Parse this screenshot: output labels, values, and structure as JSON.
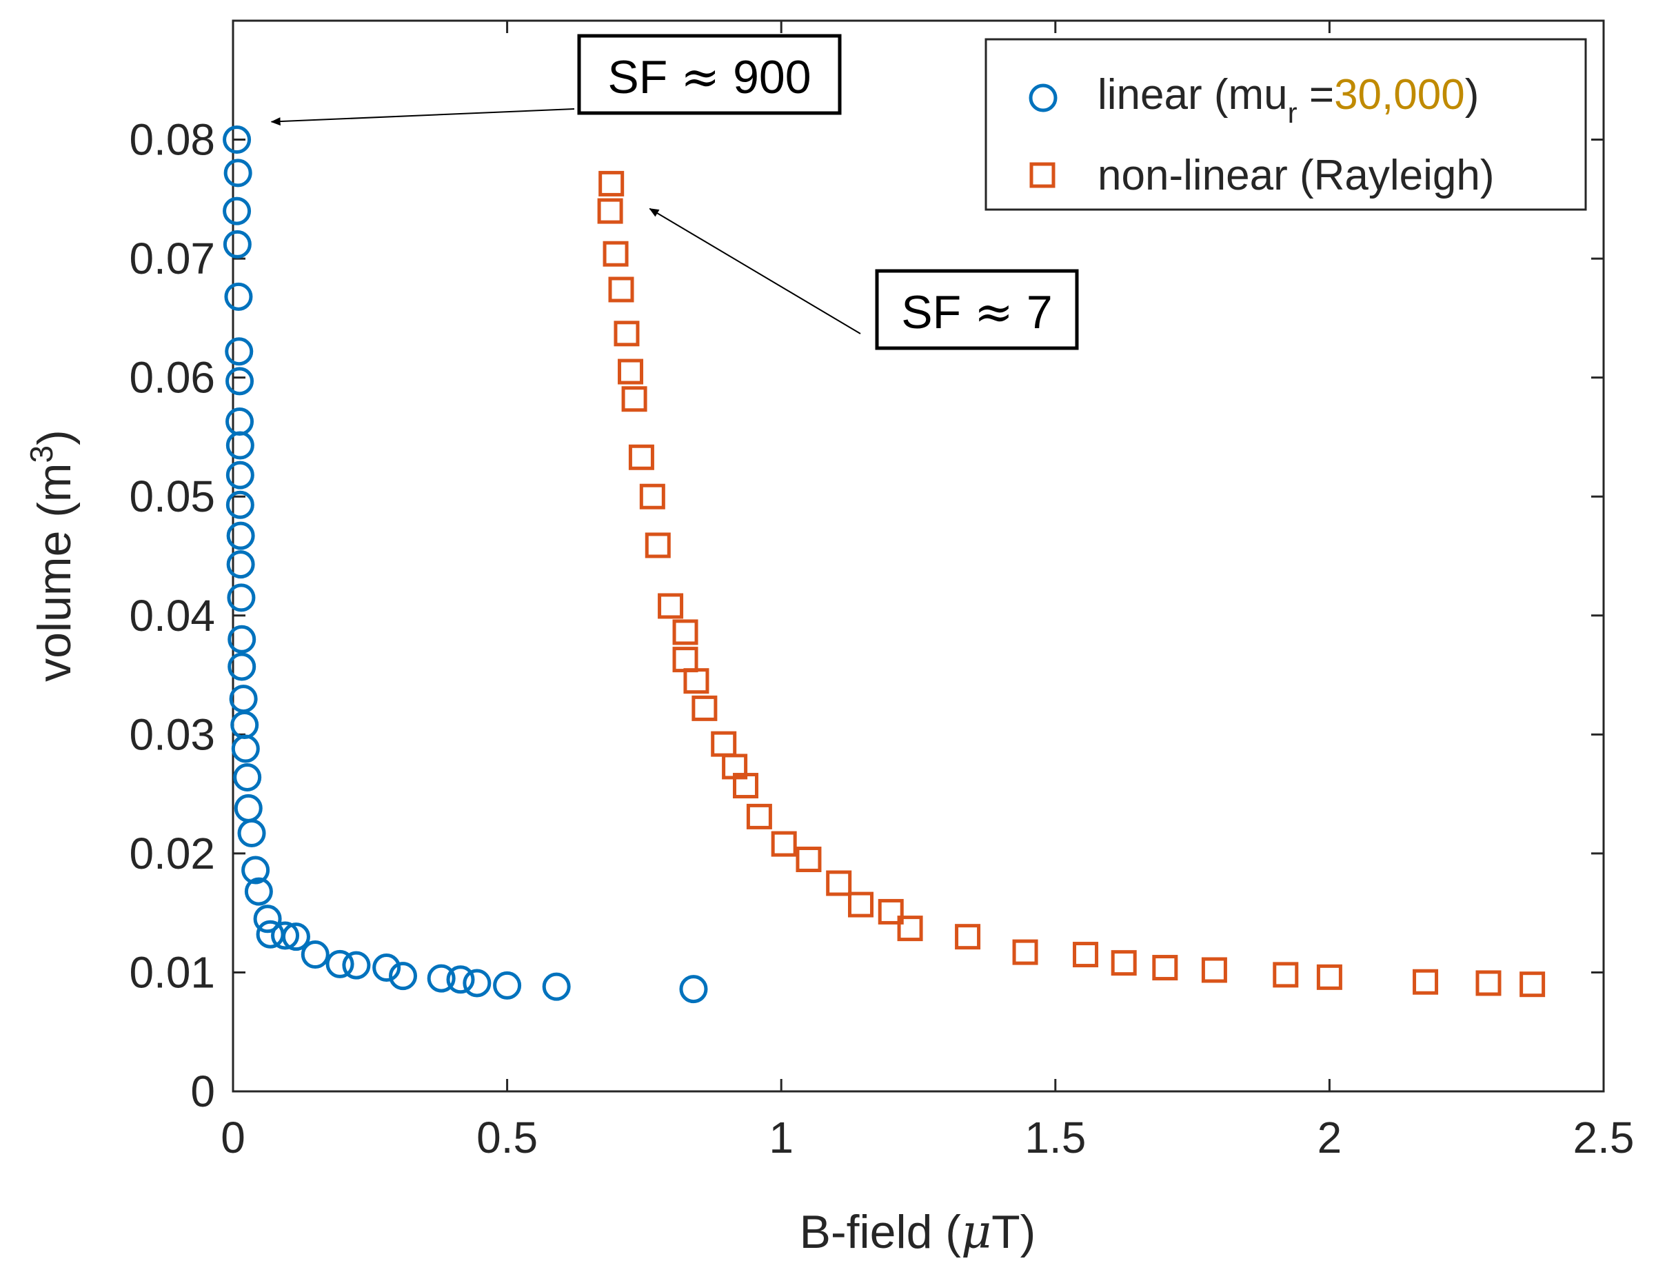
{
  "colors": {
    "linear": "#0072BD",
    "nonlinear": "#D95319",
    "axis": "#262626",
    "legend_accent": "#C08A00"
  },
  "chart_data": {
    "type": "scatter",
    "xlabel_prefix": "B-field (",
    "xlabel_mu": "μ",
    "xlabel_suffix": "T)",
    "ylabel_prefix": "volume (m",
    "ylabel_sup": "3",
    "ylabel_suffix": ")",
    "xlim": [
      0,
      2.5
    ],
    "ylim": [
      0,
      0.09
    ],
    "xticks": [
      0,
      0.5,
      1,
      1.5,
      2,
      2.5
    ],
    "xtick_labels": [
      "0",
      "0.5",
      "1",
      "1.5",
      "2",
      "2.5"
    ],
    "yticks": [
      0,
      0.01,
      0.02,
      0.03,
      0.04,
      0.05,
      0.06,
      0.07,
      0.08
    ],
    "ytick_labels": [
      "0",
      "0.01",
      "0.02",
      "0.03",
      "0.04",
      "0.05",
      "0.06",
      "0.07",
      "0.08"
    ],
    "grid": false,
    "legend_position": "top-right",
    "legend": {
      "linear_prefix": "linear (mu",
      "linear_sub": "r",
      "linear_eq": " =",
      "linear_value": "30,000",
      "linear_close": ")",
      "nonlinear": "non-linear (Rayleigh)"
    },
    "series": [
      {
        "name": "linear (mu_r =30,000)",
        "marker": "circle",
        "x": [
          0.007,
          0.009,
          0.007,
          0.008,
          0.01,
          0.011,
          0.012,
          0.012,
          0.013,
          0.013,
          0.013,
          0.014,
          0.014,
          0.015,
          0.016,
          0.016,
          0.019,
          0.021,
          0.023,
          0.026,
          0.028,
          0.034,
          0.041,
          0.047,
          0.063,
          0.068,
          0.095,
          0.115,
          0.15,
          0.195,
          0.225,
          0.28,
          0.31,
          0.38,
          0.415,
          0.445,
          0.5,
          0.59,
          0.84
        ],
        "y": [
          0.08,
          0.0772,
          0.074,
          0.0712,
          0.0668,
          0.0622,
          0.0597,
          0.0563,
          0.0543,
          0.0518,
          0.0493,
          0.0467,
          0.0443,
          0.0415,
          0.038,
          0.0357,
          0.033,
          0.0308,
          0.0288,
          0.0264,
          0.0238,
          0.0217,
          0.0186,
          0.0168,
          0.0145,
          0.0132,
          0.0131,
          0.013,
          0.0115,
          0.0107,
          0.0106,
          0.0104,
          0.0097,
          0.0095,
          0.0094,
          0.0091,
          0.0089,
          0.0088,
          0.0086
        ]
      },
      {
        "name": "non-linear (Rayleigh)",
        "marker": "square",
        "x": [
          0.69,
          0.688,
          0.698,
          0.708,
          0.718,
          0.725,
          0.732,
          0.745,
          0.765,
          0.775,
          0.798,
          0.825,
          0.825,
          0.845,
          0.86,
          0.895,
          0.915,
          0.935,
          0.96,
          1.005,
          1.05,
          1.105,
          1.145,
          1.2,
          1.235,
          1.34,
          1.445,
          1.555,
          1.625,
          1.7,
          1.79,
          1.92,
          2.0,
          2.175,
          2.29,
          2.37
        ],
        "y": [
          0.0763,
          0.074,
          0.0704,
          0.0674,
          0.0637,
          0.0605,
          0.0582,
          0.0533,
          0.05,
          0.0459,
          0.0408,
          0.0386,
          0.0363,
          0.0345,
          0.0322,
          0.0292,
          0.0273,
          0.0257,
          0.0231,
          0.0208,
          0.0195,
          0.0175,
          0.0157,
          0.0151,
          0.0137,
          0.013,
          0.0117,
          0.0115,
          0.0108,
          0.0104,
          0.0102,
          0.0098,
          0.0096,
          0.0092,
          0.0091,
          0.009
        ]
      }
    ],
    "annotations": [
      {
        "text_prefix": "SF ",
        "symbol": "≈",
        "value": " 900",
        "points_to": {
          "x": 0.07,
          "y": 0.0815
        }
      },
      {
        "text_prefix": "SF ",
        "symbol": "≈",
        "value": " 7",
        "points_to": {
          "x": 0.76,
          "y": 0.0742
        }
      }
    ]
  }
}
